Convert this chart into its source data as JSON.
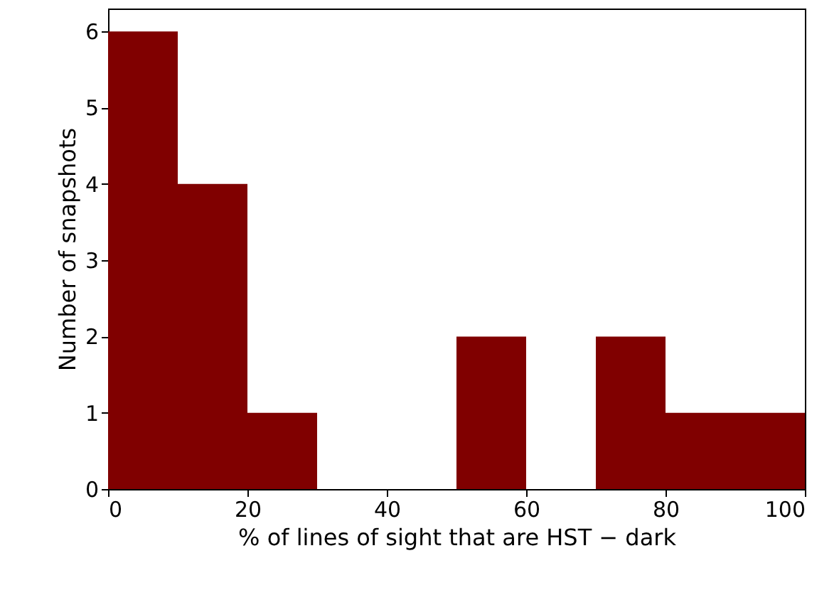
{
  "chart_data": {
    "type": "histogram",
    "xlabel": "% of lines of sight that are HST − dark",
    "ylabel": "Number of snapshots",
    "bins": [
      0,
      10,
      20,
      30,
      40,
      50,
      60,
      70,
      80,
      90,
      100
    ],
    "values": [
      6,
      4,
      1,
      0,
      0,
      2,
      0,
      2,
      1,
      1
    ],
    "color": "#800000",
    "xlim": [
      0,
      100
    ],
    "xticks": [
      0,
      20,
      40,
      60,
      80,
      100
    ],
    "ylim": [
      0,
      6.3
    ],
    "yticks": [
      0,
      1,
      2,
      3,
      4,
      5,
      6
    ],
    "grid": false
  }
}
